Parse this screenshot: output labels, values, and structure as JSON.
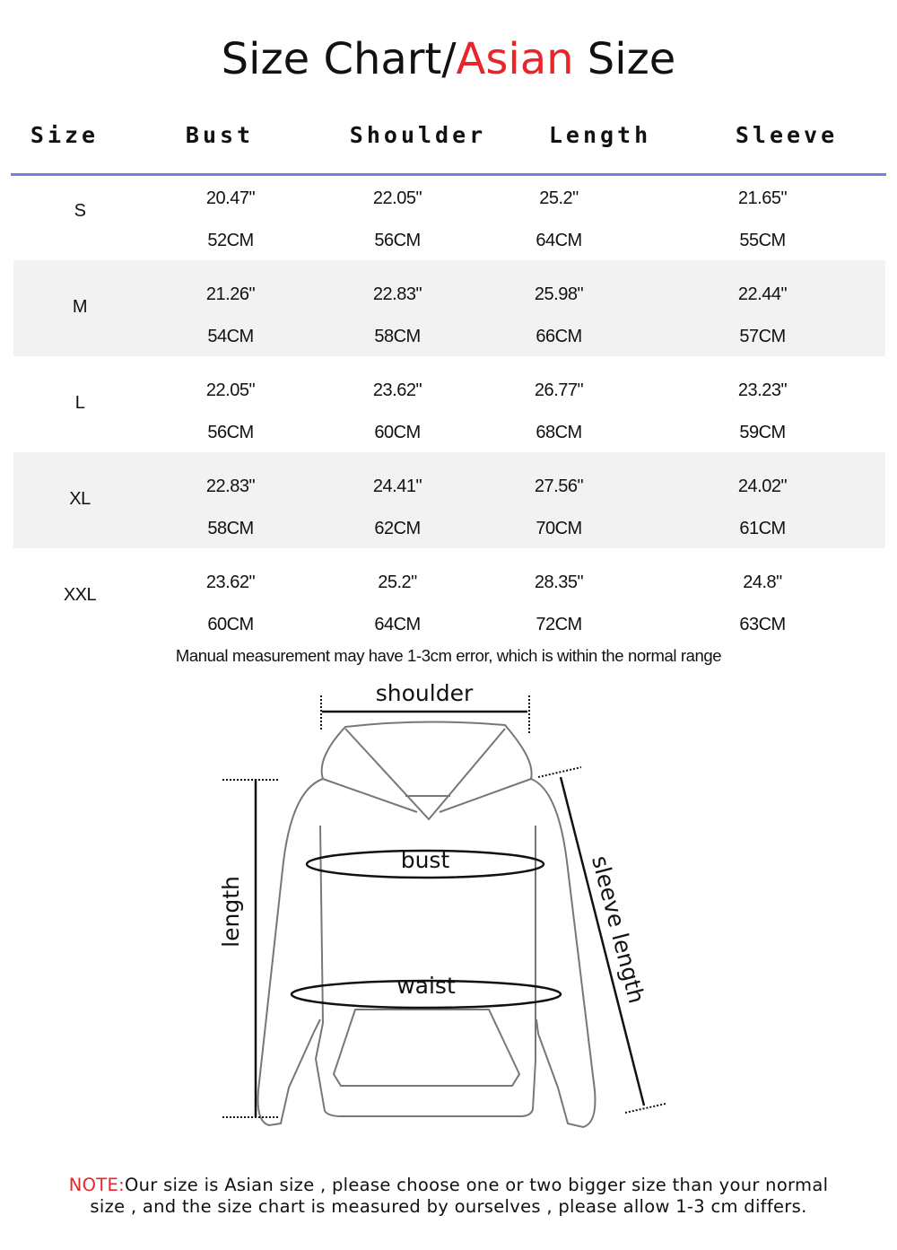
{
  "title": {
    "part1": "Size Chart/",
    "part2": "Asian",
    "part3": " Size",
    "accent_color": "#e8262a"
  },
  "table": {
    "headers": [
      "Size",
      "Bust",
      "Shoulder",
      "Length",
      "Sleeve"
    ],
    "rule_color": "#6a84dc",
    "rows": [
      {
        "size": "S",
        "inch": [
          "20.47\"",
          "22.05\"",
          "25.2\"",
          "21.65\""
        ],
        "cm": [
          "52CM",
          "56CM",
          "64CM",
          "55CM"
        ]
      },
      {
        "size": "M",
        "inch": [
          "21.26\"",
          "22.83\"",
          "25.98\"",
          "22.44\""
        ],
        "cm": [
          "54CM",
          "58CM",
          "66CM",
          "57CM"
        ]
      },
      {
        "size": "L",
        "inch": [
          "22.05\"",
          "23.62\"",
          "26.77\"",
          "23.23\""
        ],
        "cm": [
          "56CM",
          "60CM",
          "68CM",
          "59CM"
        ]
      },
      {
        "size": "XL",
        "inch": [
          "22.83\"",
          "24.41\"",
          "27.56\"",
          "24.02\""
        ],
        "cm": [
          "58CM",
          "62CM",
          "70CM",
          "61CM"
        ]
      },
      {
        "size": "XXL",
        "inch": [
          "23.62\"",
          "25.2\"",
          "28.35\"",
          "24.8\""
        ],
        "cm": [
          "60CM",
          "64CM",
          "72CM",
          "63CM"
        ]
      }
    ]
  },
  "measurement_note": "Manual measurement may have 1-3cm error, which is within the normal range",
  "diagram": {
    "shoulder": "shoulder",
    "bust": "bust",
    "waist": "waist",
    "length": "length",
    "sleeve": "sleeve length"
  },
  "footer": {
    "label": "NOTE:",
    "line1": "Our size is Asian size , please choose one or two bigger size than your normal",
    "line2": "size , and the size chart is measured by ourselves , please allow 1-3 cm differs."
  }
}
